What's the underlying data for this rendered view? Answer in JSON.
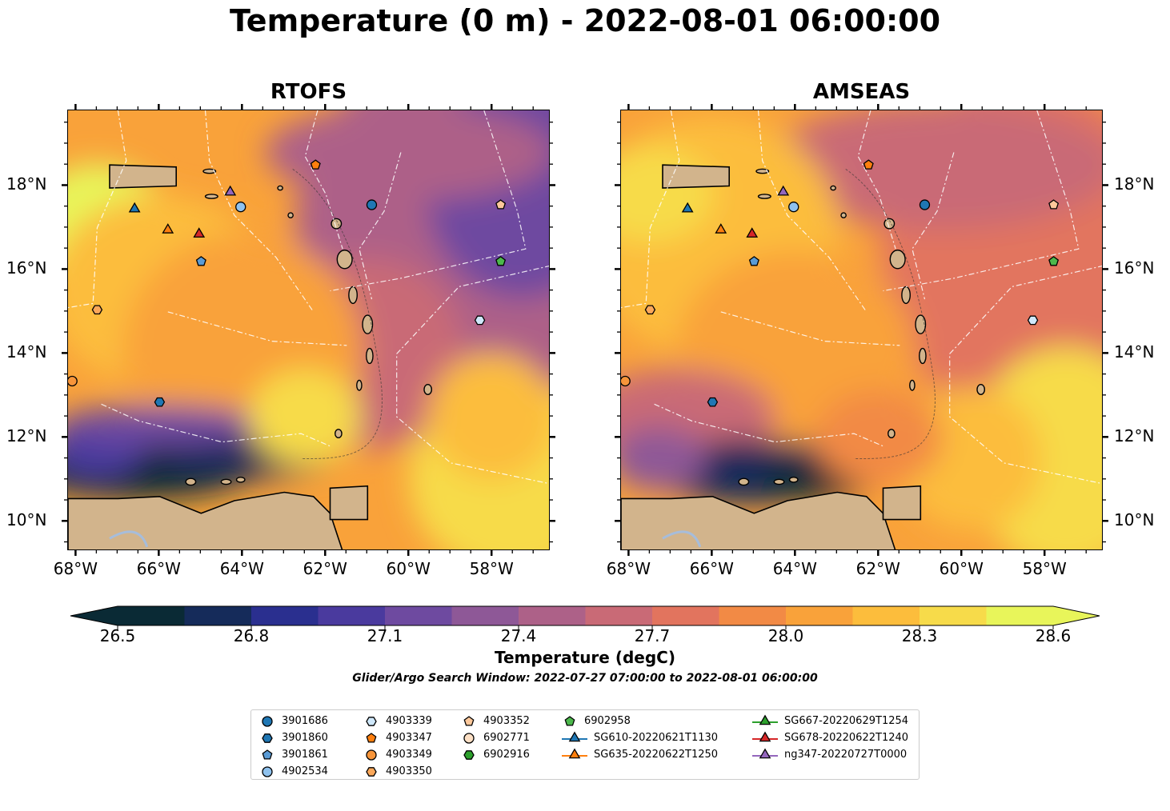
{
  "title": "Temperature (0 m) - 2022-08-01 06:00:00",
  "panels": [
    {
      "title": "RTOFS"
    },
    {
      "title": "AMSEAS"
    }
  ],
  "axes": {
    "x_ticks": [
      "68°W",
      "66°W",
      "64°W",
      "62°W",
      "60°W",
      "58°W"
    ],
    "y_ticks": [
      "18°N",
      "16°N",
      "14°N",
      "12°N",
      "10°N"
    ],
    "lon_range": [
      -68.2,
      -56.6
    ],
    "lat_range": [
      9.3,
      19.8
    ]
  },
  "colorbar": {
    "label": "Temperature (degC)",
    "ticks": [
      "26.5",
      "26.8",
      "27.1",
      "27.4",
      "27.7",
      "28.0",
      "28.3",
      "28.6"
    ],
    "colormap": "thermal",
    "colors": [
      "#0a2a35",
      "#152b5a",
      "#2a2f8f",
      "#4a3a9e",
      "#6e4aa0",
      "#8e5897",
      "#ad6188",
      "#c96a76",
      "#e2745e",
      "#f28a45",
      "#f9a23a",
      "#fcbd3c",
      "#f7db4a",
      "#e8f55a"
    ],
    "range": [
      26.4,
      28.7
    ]
  },
  "search_window": "Glider/Argo Search Window: 2022-07-27 07:00:00 to 2022-08-01 06:00:00",
  "legend": [
    {
      "label": "3901686",
      "marker": "circle",
      "color": "#1f77b4"
    },
    {
      "label": "3901860",
      "marker": "hexagon",
      "color": "#1f77b4"
    },
    {
      "label": "3901861",
      "marker": "pentagon",
      "color": "#5a9bd5"
    },
    {
      "label": "4902534",
      "marker": "circle",
      "color": "#8fc2ee"
    },
    {
      "label": "4903339",
      "marker": "hexagon",
      "color": "#cfe8fb"
    },
    {
      "label": "4903347",
      "marker": "pentagon",
      "color": "#ff7f0e"
    },
    {
      "label": "4903349",
      "marker": "circle",
      "color": "#f7953a"
    },
    {
      "label": "4903350",
      "marker": "hexagon",
      "color": "#fba85a"
    },
    {
      "label": "4903352",
      "marker": "pentagon",
      "color": "#fdc89b"
    },
    {
      "label": "6902771",
      "marker": "circle",
      "color": "#fde0c5"
    },
    {
      "label": "6902916",
      "marker": "hexagon",
      "color": "#2ca02c"
    },
    {
      "label": "6902958",
      "marker": "pentagon",
      "color": "#4cb84c"
    },
    {
      "label": "SG610-20220621T1130",
      "marker": "triangle",
      "color": "#1f77b4",
      "line": true
    },
    {
      "label": "SG635-20220622T1250",
      "marker": "triangle",
      "color": "#ff7f0e",
      "line": true
    },
    {
      "label": "SG667-20220629T1254",
      "marker": "triangle",
      "color": "#2ca02c",
      "line": true
    },
    {
      "label": "SG678-20220622T1240",
      "marker": "triangle",
      "color": "#d62728",
      "line": true
    },
    {
      "label": "ng347-20220727T0000",
      "marker": "triangle",
      "color": "#9467bd",
      "line": true
    }
  ],
  "markers": [
    {
      "id": "3901686",
      "lon": -60.9,
      "lat": 17.55
    },
    {
      "id": "4902534",
      "lon": -64.05,
      "lat": 17.5
    },
    {
      "id": "3901861",
      "lon": -65.0,
      "lat": 16.2
    },
    {
      "id": "4903347",
      "lon": -62.25,
      "lat": 18.5
    },
    {
      "id": "4903352",
      "lon": -57.8,
      "lat": 17.55
    },
    {
      "id": "6902958",
      "lon": -57.8,
      "lat": 16.2
    },
    {
      "id": "4903350",
      "lon": -67.5,
      "lat": 15.05
    },
    {
      "id": "4903339",
      "lon": -58.3,
      "lat": 14.8
    },
    {
      "id": "4903349",
      "lon": -68.1,
      "lat": 13.35
    },
    {
      "id": "3901860",
      "lon": -66.0,
      "lat": 12.85
    },
    {
      "id": "SG610-20220621T1130",
      "lon": -66.6,
      "lat": 17.45
    },
    {
      "id": "SG635-20220622T1250",
      "lon": -65.8,
      "lat": 16.95
    },
    {
      "id": "SG678-20220622T1240",
      "lon": -65.05,
      "lat": 16.85
    },
    {
      "id": "ng347-20220727T0000",
      "lon": -64.3,
      "lat": 17.85
    }
  ],
  "colors": {
    "land": "#d2b48c",
    "river": "#a6bddb",
    "eez": "#ffffff"
  }
}
